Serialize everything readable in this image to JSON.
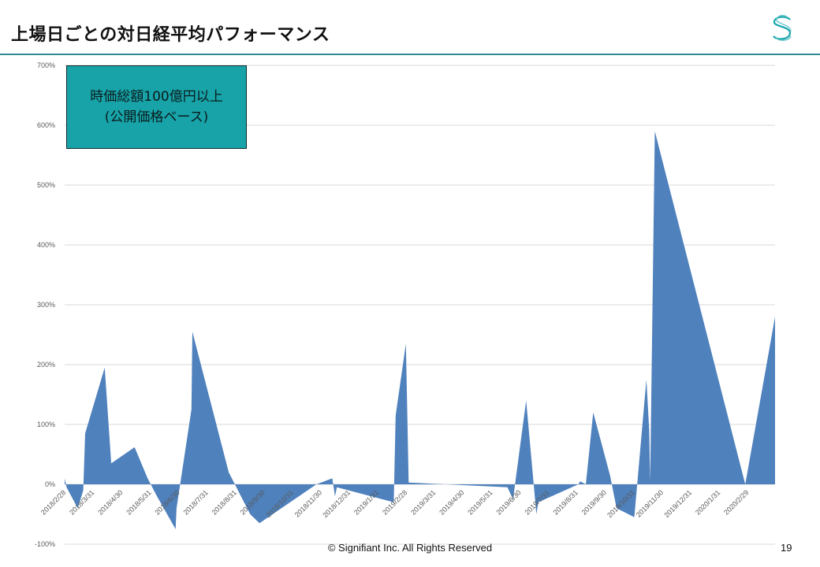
{
  "page": {
    "title": "上場日ごとの対日経平均パフォーマンス",
    "annotation_line1": "時価総額100億円以上",
    "annotation_line2": "(公開価格ベース)",
    "footer": "© Signifiant Inc. All Rights Reserved",
    "page_number": "19",
    "logo_icon": "signifiant-s-logo-icon",
    "accent_color": "#2f8c94"
  },
  "chart_data": {
    "type": "area",
    "title": "",
    "xlabel": "",
    "ylabel": "",
    "ylim": [
      -100,
      700
    ],
    "y_ticks": [
      -100,
      0,
      100,
      200,
      300,
      400,
      500,
      600,
      700
    ],
    "y_tick_labels": [
      "-100%",
      "0%",
      "100%",
      "200%",
      "300%",
      "400%",
      "500%",
      "600%",
      "700%"
    ],
    "x_range": [
      "2018-02-28",
      "2020-03-31"
    ],
    "x_tick_labels": [
      "2018/2/28",
      "2018/3/31",
      "2018/4/30",
      "2018/5/31",
      "2018/6/30",
      "2018/7/31",
      "2018/8/31",
      "2018/9/30",
      "2018/10/31",
      "2018/11/30",
      "2018/12/31",
      "2019/1/31",
      "2019/2/28",
      "2019/3/31",
      "2019/4/30",
      "2019/5/31",
      "2019/6/30",
      "2019/7/31",
      "2019/8/31",
      "2019/9/30",
      "2019/10/31",
      "2019/11/30",
      "2019/12/31",
      "2020/1/31",
      "2020/2/29"
    ],
    "grid": true,
    "fill_color": "#4f81bd",
    "unit": "%",
    "series": [
      {
        "points": [
          [
            "2018-02-28",
            10
          ],
          [
            "2018-03-02",
            -5
          ],
          [
            "2018-03-14",
            -40
          ],
          [
            "2018-03-20",
            -10
          ],
          [
            "2018-03-22",
            85
          ],
          [
            "2018-04-12",
            195
          ],
          [
            "2018-04-19",
            35
          ],
          [
            "2018-05-14",
            62
          ],
          [
            "2018-05-28",
            10
          ],
          [
            "2018-06-07",
            -20
          ],
          [
            "2018-06-27",
            -75
          ],
          [
            "2018-06-28",
            -40
          ],
          [
            "2018-07-14",
            125
          ],
          [
            "2018-07-15",
            255
          ],
          [
            "2018-08-23",
            20
          ],
          [
            "2018-09-15",
            -50
          ],
          [
            "2018-09-25",
            -65
          ],
          [
            "2018-11-25",
            0
          ],
          [
            "2018-12-12",
            10
          ],
          [
            "2018-12-15",
            -20
          ],
          [
            "2018-12-17",
            -5
          ],
          [
            "2019-02-16",
            -30
          ],
          [
            "2019-02-18",
            115
          ],
          [
            "2019-03-01",
            235
          ],
          [
            "2019-03-04",
            3
          ],
          [
            "2019-06-18",
            -5
          ],
          [
            "2019-06-24",
            -25
          ],
          [
            "2019-07-08",
            140
          ],
          [
            "2019-07-19",
            -50
          ],
          [
            "2019-07-21",
            -30
          ],
          [
            "2019-09-02",
            0
          ],
          [
            "2019-09-04",
            5
          ],
          [
            "2019-09-10",
            0
          ],
          [
            "2019-09-18",
            120
          ],
          [
            "2019-10-06",
            15
          ],
          [
            "2019-10-13",
            -40
          ],
          [
            "2019-11-01",
            -55
          ],
          [
            "2019-11-14",
            175
          ],
          [
            "2019-11-17",
            90
          ],
          [
            "2019-11-18",
            5
          ],
          [
            "2019-11-23",
            590
          ],
          [
            "2020-02-28",
            0
          ],
          [
            "2020-03-31",
            280
          ]
        ]
      }
    ]
  }
}
